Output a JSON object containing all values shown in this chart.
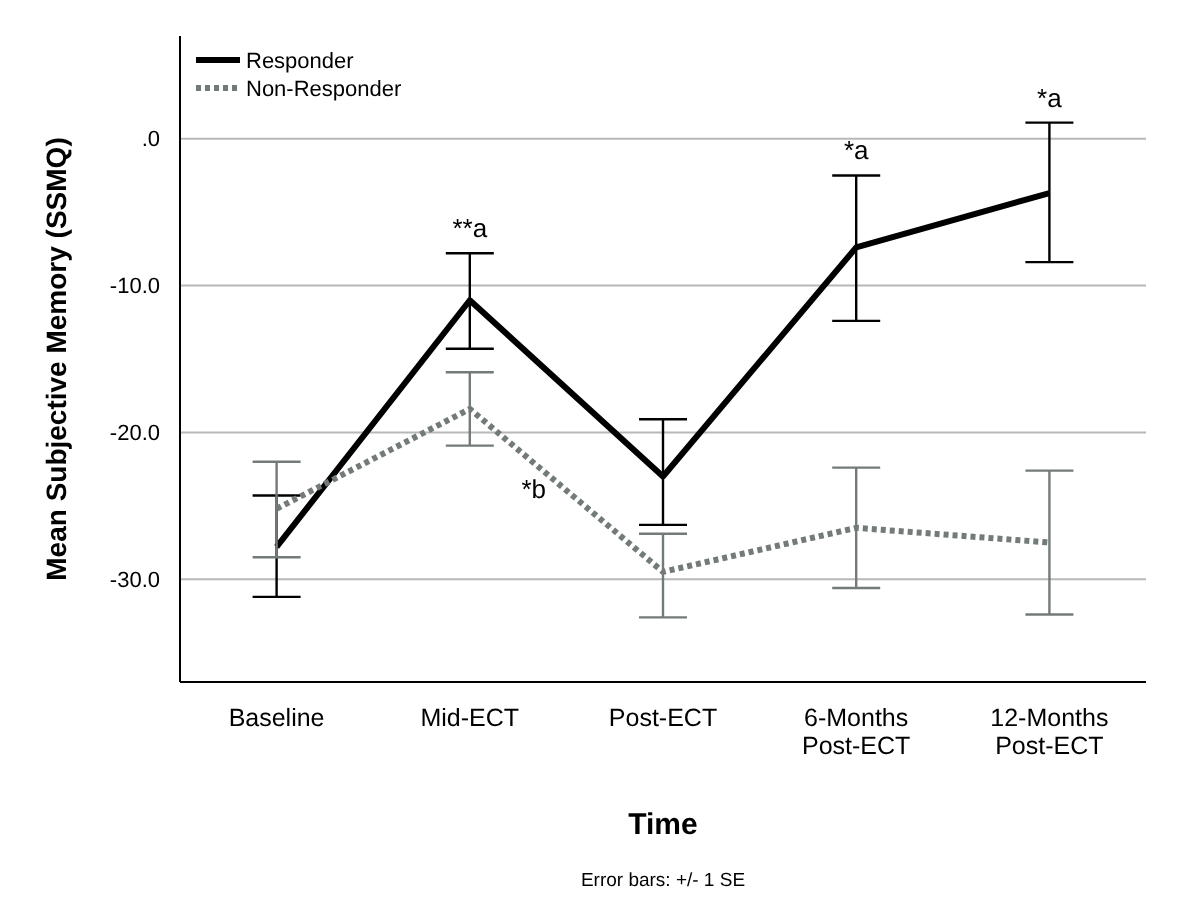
{
  "chart_data": {
    "type": "line",
    "xlabel": "Time",
    "ylabel": "Mean Subjective Memory (SSMQ)",
    "categories": [
      "Baseline",
      "Mid-ECT",
      "Post-ECT",
      "6-Months\nPost-ECT",
      "12-Months\nPost-ECT"
    ],
    "series": [
      {
        "name": "Responder",
        "color": "#000000",
        "line_style": "solid",
        "values": [
          -27.8,
          -11.0,
          -23.0,
          -7.4,
          -3.7
        ],
        "errors": [
          [
            -31.2,
            -24.3
          ],
          [
            -14.3,
            -7.8
          ],
          [
            -26.3,
            -19.1
          ],
          [
            -12.4,
            -2.5
          ],
          [
            -8.4,
            1.1
          ]
        ]
      },
      {
        "name": "Non-Responder",
        "color": "#737b78",
        "line_style": "dotted",
        "values": [
          -25.2,
          -18.4,
          -29.5,
          -26.5,
          -27.5
        ],
        "errors": [
          [
            -28.5,
            -22.0
          ],
          [
            -20.9,
            -15.9
          ],
          [
            -32.6,
            -26.9
          ],
          [
            -30.6,
            -22.4
          ],
          [
            -32.4,
            -22.6
          ]
        ]
      }
    ],
    "ylim": [
      -37,
      7
    ],
    "yticks": [
      {
        "value": 0,
        "label": ".0"
      },
      {
        "value": -10,
        "label": "-10.0"
      },
      {
        "value": -20,
        "label": "-20.0"
      },
      {
        "value": -30,
        "label": "-30.0"
      }
    ],
    "grid": "y",
    "legend": "top left",
    "marker": "none",
    "annotations": [
      {
        "text": "**a",
        "x": "Mid-ECT",
        "y": -7.8
      },
      {
        "text": "*b",
        "x": "Mid-ECT",
        "y": -20.9
      },
      {
        "text": "*a",
        "x": "6-Months\nPost-ECT",
        "y": -2.5
      },
      {
        "text": "*a",
        "x": "12-Months\nPost-ECT",
        "y": 1.1
      },
      "Error bars: +/- 1 SE"
    ]
  }
}
